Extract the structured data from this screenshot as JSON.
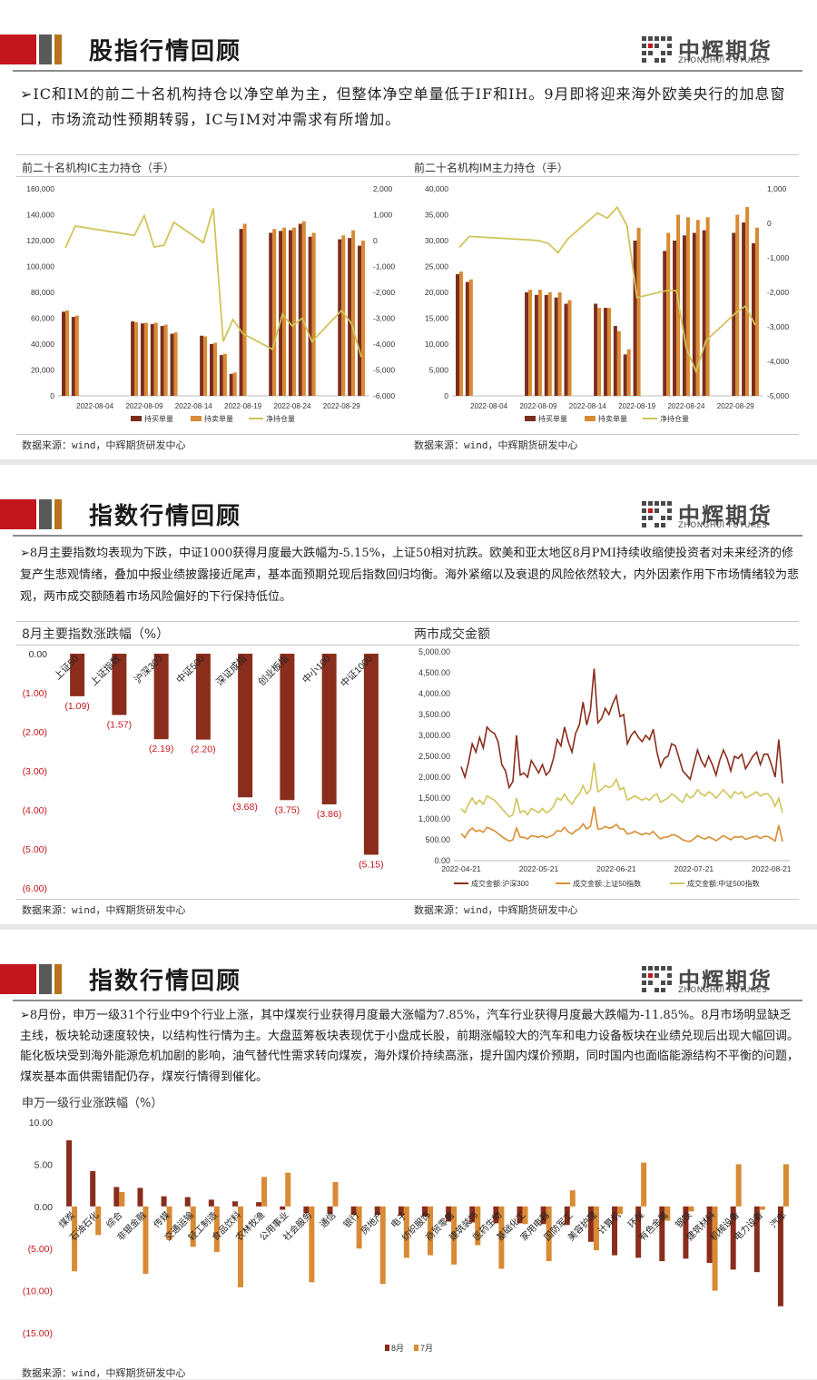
{
  "colors": {
    "red": "#c3161c",
    "gray": "#595959",
    "orange": "#b8741a",
    "dark_red": "#8a2d1c",
    "amber": "#d98d32",
    "olive": "#d0c45a",
    "brown_bar": "#7a2e1e",
    "orange_bar": "#d98a34"
  },
  "brand": {
    "cn": "中辉期货",
    "en": "ZHONGHUI FUTURES"
  },
  "slide1": {
    "title": "股指行情回顾",
    "intro": "IC和IM的前二十名机构持仓以净空单为主，但整体净空单量低于IF和IH。9月即将迎来海外欧美央行的加息窗口，市场流动性预期转弱，IC与IM对冲需求有所增加。",
    "left_panel_title": "前二十名机构IC主力持仓（手）",
    "right_panel_title": "前二十名机构IM主力持仓（手）",
    "source_left": "数据来源：wind，中辉期货研发中心",
    "source_right": "数据来源：wind，中辉期货研发中心"
  },
  "slide2": {
    "title": "指数行情回顾",
    "intro": "8月主要指数均表现为下跌，中证1000获得月度最大跌幅为-5.15%，上证50相对抗跌。欧美和亚太地区8月PMI持续收缩使投资者对未来经济的修复产生悲观情绪，叠加中报业绩披露接近尾声，基本面预期兑现后指数回归均衡。海外紧缩以及衰退的风险依然较大，内外因素作用下市场情绪较为悲观，两市成交额随着市场风险偏好的下行保持低位。",
    "left_panel_title": "8月主要指数涨跌幅（%）",
    "right_panel_title": "两市成交金额",
    "source_left": "数据来源：wind，中辉期货研发中心",
    "source_right": "数据来源：wind，中辉期货研发中心"
  },
  "slide3": {
    "title": "指数行情回顾",
    "intro": "8月份，申万一级31个行业中9个行业上涨，其中煤炭行业获得月度最大涨幅为7.85%，汽车行业获得月度最大跌幅为-11.85%。8月市场明显缺乏主线，板块轮动速度较快，以结构性行情为主。大盘蓝筹板块表现优于小盘成长股，前期涨幅较大的汽车和电力设备板块在业绩兑现后出现大幅回调。能化板块受到海外能源危机加剧的影响，油气替代性需求转向煤炭，海外煤价持续高涨，提升国内煤价预期，同时国内也面临能源结构不平衡的问题，煤炭基本面供需错配仍存，煤炭行情得到催化。",
    "panel_title": "申万一级行业涨跌幅（%）",
    "source": "数据来源：wind，中辉期货研发中心"
  },
  "chart_data": [
    {
      "type": "bar",
      "title": "前二十名机构IC主力持仓（手）",
      "x_tick_labels": [
        "2022-08-04",
        "2022-08-09",
        "2022-08-14",
        "2022-08-19",
        "2022-08-24",
        "2022-08-29"
      ],
      "dates": [
        "2022-08-01",
        "2022-08-02",
        "2022-08-08",
        "2022-08-09",
        "2022-08-10",
        "2022-08-11",
        "2022-08-12",
        "2022-08-15",
        "2022-08-16",
        "2022-08-17",
        "2022-08-18",
        "2022-08-19",
        "2022-08-22",
        "2022-08-23",
        "2022-08-24",
        "2022-08-25",
        "2022-08-26",
        "2022-08-29",
        "2022-08-30",
        "2022-08-31"
      ],
      "series": [
        {
          "name": "持买单量",
          "axis": "left",
          "values": [
            65000,
            61000,
            57500,
            56000,
            55500,
            54000,
            48000,
            46500,
            40000,
            31500,
            17000,
            129000,
            126000,
            127500,
            128000,
            133000,
            123000,
            121000,
            122000,
            116000
          ]
        },
        {
          "name": "持卖单量",
          "axis": "left",
          "values": [
            66000,
            62000,
            57000,
            56500,
            56500,
            55000,
            49000,
            46000,
            41000,
            32500,
            18000,
            133000,
            129000,
            130000,
            130000,
            135000,
            126000,
            124000,
            128000,
            120000
          ]
        },
        {
          "name": "净持仓量",
          "axis": "right",
          "values": [
            -280,
            560,
            200,
            970,
            -250,
            -180,
            710,
            -80,
            1250,
            -3900,
            -3050,
            -3600,
            -4200,
            -2850,
            -3300,
            -3000,
            -3900,
            -2700,
            -3200,
            -4500
          ]
        }
      ],
      "left_ylim": [
        0,
        160000
      ],
      "left_ticks": [
        "160,000",
        "140,000",
        "120,000",
        "100,000",
        "80,000",
        "60,000",
        "40,000",
        "20,000",
        "0"
      ],
      "right_ylim": [
        -6000,
        2000
      ],
      "right_ticks": [
        "2,000",
        "1,000",
        "0",
        "-1,000",
        "-2,000",
        "-3,000",
        "-4,000",
        "-5,000",
        "-6,000"
      ],
      "legend_position": "bottom"
    },
    {
      "type": "bar",
      "title": "前二十名机构IM主力持仓（手）",
      "x_tick_labels": [
        "2022-08-04",
        "2022-08-09",
        "2022-08-14",
        "2022-08-19",
        "2022-08-24",
        "2022-08-29"
      ],
      "dates": [
        "2022-08-01",
        "2022-08-02",
        "2022-08-08",
        "2022-08-09",
        "2022-08-10",
        "2022-08-11",
        "2022-08-12",
        "2022-08-15",
        "2022-08-16",
        "2022-08-17",
        "2022-08-18",
        "2022-08-19",
        "2022-08-22",
        "2022-08-23",
        "2022-08-24",
        "2022-08-25",
        "2022-08-26",
        "2022-08-29",
        "2022-08-30",
        "2022-08-31"
      ],
      "series": [
        {
          "name": "持买单量",
          "axis": "left",
          "values": [
            23500,
            22000,
            20000,
            19500,
            19500,
            19000,
            17800,
            17800,
            17000,
            13500,
            8000,
            30000,
            28000,
            30000,
            31000,
            31500,
            32000,
            31500,
            33500,
            29500
          ]
        },
        {
          "name": "持卖单量",
          "axis": "left",
          "values": [
            24000,
            22500,
            20500,
            20500,
            20000,
            20000,
            18500,
            17000,
            17000,
            12500,
            9000,
            32500,
            31500,
            35000,
            34500,
            34000,
            34500,
            35000,
            36500,
            32500
          ]
        },
        {
          "name": "净持仓量",
          "axis": "right",
          "values": [
            -700,
            -380,
            -480,
            -500,
            -580,
            -850,
            -450,
            300,
            150,
            470,
            -70,
            -2150,
            -1950,
            -1950,
            -3600,
            -4300,
            -3400,
            -2600,
            -2400,
            -2950
          ]
        }
      ],
      "left_ylim": [
        0,
        40000
      ],
      "left_ticks": [
        "40,000",
        "35,000",
        "30,000",
        "25,000",
        "20,000",
        "15,000",
        "10,000",
        "5,000",
        "0"
      ],
      "right_ylim": [
        -5000,
        1000
      ],
      "right_ticks": [
        "1,000",
        "0",
        "-1,000",
        "-2,000",
        "-3,000",
        "-4,000",
        "-5,000"
      ],
      "legend_position": "bottom"
    },
    {
      "type": "bar",
      "title": "8月主要指数涨跌幅（%）",
      "categories": [
        "上证50",
        "上证指数",
        "沪深300",
        "中证500",
        "深证成指",
        "创业板指",
        "中小100",
        "中证1000"
      ],
      "values": [
        -1.09,
        -1.57,
        -2.19,
        -2.2,
        -3.68,
        -3.75,
        -3.86,
        -5.15
      ],
      "value_labels": [
        "(1.09)",
        "(1.57)",
        "(2.19)",
        "(2.20)",
        "(3.68)",
        "(3.75)",
        "(3.86)",
        "(5.15)"
      ],
      "y_ticks": [
        "0.00",
        "(1.00)",
        "(2.00)",
        "(3.00)",
        "(4.00)",
        "(5.00)",
        "(6.00)"
      ],
      "ylim": [
        -6,
        0
      ]
    },
    {
      "type": "line",
      "title": "两市成交金额",
      "x_tick_labels": [
        "2022-04-21",
        "2022-05-21",
        "2022-06-21",
        "2022-07-21",
        "2022-08-21"
      ],
      "y_ticks": [
        "5,000.00",
        "4,500.00",
        "4,000.00",
        "3,500.00",
        "3,000.00",
        "2,500.00",
        "2,000.00",
        "1,500.00",
        "1,000.00",
        "500.00",
        "0.00"
      ],
      "ylim": [
        0,
        5000
      ],
      "series": [
        {
          "name": "成交金额:沪深300",
          "values": [
            2250,
            2000,
            2350,
            2800,
            2600,
            2950,
            2700,
            3200,
            3100,
            3050,
            2850,
            2300,
            2150,
            1750,
            1900,
            3000,
            2050,
            2100,
            2000,
            2400,
            2250,
            2100,
            2300,
            2050,
            2150,
            2450,
            2900,
            2750,
            3200,
            2850,
            2600,
            3050,
            3250,
            3800,
            3250,
            3600,
            4600,
            3300,
            3400,
            3650,
            3500,
            3750,
            3950,
            3450,
            3500,
            2800,
            3000,
            3100,
            2950,
            2850,
            3000,
            2900,
            3150,
            2600,
            2250,
            2450,
            2500,
            2800,
            2750,
            2450,
            2150,
            2050,
            1950,
            2300,
            2650,
            2400,
            2250,
            2500,
            2300,
            2050,
            2400,
            2650,
            2450,
            2150,
            2500,
            2450,
            2550,
            2200,
            2350,
            2500,
            2600,
            2300,
            2550,
            2550,
            2300,
            2000,
            2900,
            1850
          ]
        },
        {
          "name": "成交金额:上证50指数",
          "values": [
            650,
            550,
            700,
            780,
            700,
            730,
            680,
            800,
            760,
            720,
            650,
            580,
            520,
            470,
            500,
            780,
            560,
            560,
            520,
            600,
            580,
            560,
            600,
            550,
            580,
            620,
            720,
            700,
            800,
            690,
            640,
            720,
            760,
            880,
            760,
            820,
            1300,
            760,
            760,
            820,
            780,
            800,
            870,
            760,
            760,
            640,
            660,
            700,
            660,
            620,
            660,
            630,
            700,
            600,
            520,
            560,
            570,
            620,
            610,
            560,
            500,
            470,
            460,
            520,
            600,
            550,
            520,
            570,
            530,
            480,
            540,
            600,
            550,
            500,
            570,
            560,
            580,
            510,
            540,
            570,
            590,
            530,
            580,
            580,
            530,
            470,
            850,
            460
          ]
        },
        {
          "name": "成交金额:中证500指数",
          "values": [
            1250,
            1150,
            1350,
            1500,
            1350,
            1450,
            1350,
            1550,
            1500,
            1450,
            1350,
            1250,
            1150,
            1050,
            1100,
            1500,
            1150,
            1200,
            1100,
            1250,
            1200,
            1150,
            1250,
            1150,
            1200,
            1300,
            1500,
            1450,
            1600,
            1450,
            1350,
            1500,
            1600,
            1800,
            1600,
            1700,
            2350,
            1650,
            1700,
            1800,
            1750,
            1800,
            1950,
            1700,
            1750,
            1450,
            1500,
            1550,
            1500,
            1450,
            1500,
            1450,
            1550,
            1600,
            1400,
            1450,
            1500,
            1600,
            1550,
            1450,
            1400,
            1600,
            1500,
            1550,
            1700,
            1600,
            1550,
            1650,
            1600,
            1500,
            1600,
            1700,
            1600,
            1500,
            1650,
            1600,
            1650,
            1500,
            1550,
            1600,
            1650,
            1550,
            1600,
            1600,
            1500,
            1300,
            1500,
            1150
          ]
        }
      ],
      "legend_position": "bottom"
    },
    {
      "type": "bar",
      "title": "申万一级行业涨跌幅（%）",
      "categories": [
        "煤炭",
        "石油石化",
        "综合",
        "非银金融",
        "传媒",
        "交通运输",
        "轻工制造",
        "食品饮料",
        "农林牧渔",
        "公用事业",
        "社会服务",
        "通信",
        "银行",
        "房地产",
        "电子",
        "纺织服饰",
        "商贸零售",
        "建筑装饰",
        "医药生物",
        "基础化工",
        "家用电器",
        "国防军工",
        "美容护理",
        "计算机",
        "环保",
        "有色金属",
        "钢铁",
        "建筑材料",
        "机械设备",
        "电力设备",
        "汽车"
      ],
      "series": [
        {
          "name": "8月",
          "values": [
            7.85,
            4.2,
            2.3,
            2.2,
            1.2,
            1.1,
            0.8,
            0.6,
            0.5,
            -0.4,
            -0.8,
            -0.9,
            -1.0,
            -1.0,
            -1.1,
            -1.2,
            -1.8,
            -1.9,
            -2.0,
            -2.0,
            -2.1,
            -2.2,
            -4.2,
            -5.8,
            -6.1,
            -6.5,
            -6.2,
            -6.7,
            -7.5,
            -7.8,
            -11.85
          ]
        },
        {
          "name": "7月",
          "values": [
            -7.7,
            -3.4,
            1.7,
            -8.0,
            -4.0,
            -4.8,
            -5.4,
            -9.6,
            3.5,
            4.0,
            -9.0,
            2.9,
            -5.0,
            -9.2,
            -6.1,
            -5.8,
            -6.9,
            -4.6,
            -7.4,
            -2.1,
            -6.5,
            1.9,
            -5.2,
            -0.9,
            5.2,
            -1.7,
            -0.6,
            -10.0,
            5.0,
            -0.4,
            5.0
          ]
        }
      ],
      "y_ticks": [
        "10.00",
        "5.00",
        "0.00",
        "(5.00)",
        "(10.00)",
        "(15.00)"
      ],
      "ylim": [
        -15,
        10
      ],
      "legend_position": "bottom"
    }
  ]
}
